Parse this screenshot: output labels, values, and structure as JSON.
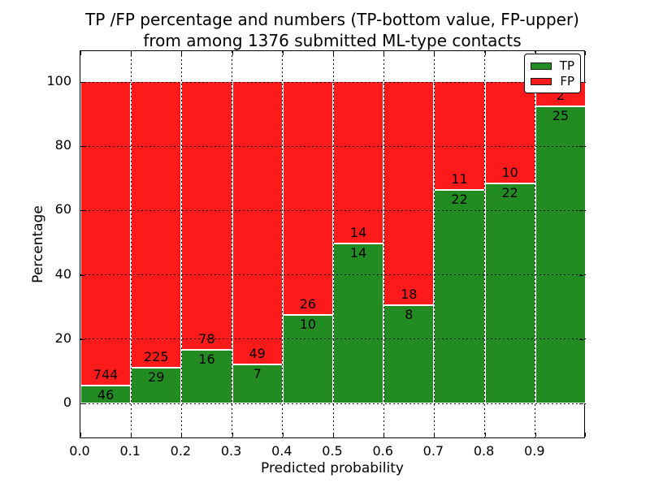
{
  "figure": {
    "title": "TP /FP percentage and numbers (TP-bottom value, FP-upper)",
    "subtitle": "from among 1376 submitted ML-type contacts"
  },
  "chart_data": {
    "type": "bar",
    "variant": "stacked-percentage-histogram",
    "title": "TP /FP percentage and numbers (TP-bottom value, FP-upper)",
    "subtitle": "from among 1376 submitted ML-type contacts",
    "xlabel": "Predicted probability",
    "ylabel": "Percentage",
    "total_contacts": 1376,
    "xlim": [
      0.0,
      1.0
    ],
    "ylim": [
      -11,
      110
    ],
    "grid": "dotted-black-both-axes",
    "legend_position": "upper-right",
    "bin_width": 0.1,
    "bin_starts": [
      0.0,
      0.1,
      0.2,
      0.3,
      0.4,
      0.5,
      0.6,
      0.7,
      0.8,
      0.9
    ],
    "x_ticks": [
      0.0,
      0.1,
      0.2,
      0.3,
      0.4,
      0.5,
      0.6,
      0.7,
      0.8,
      0.9
    ],
    "x_tick_labels": [
      "0.0",
      "0.1",
      "0.2",
      "0.3",
      "0.4",
      "0.5",
      "0.6",
      "0.7",
      "0.8",
      "0.9"
    ],
    "y_ticks": [
      0,
      20,
      40,
      60,
      80,
      100
    ],
    "y_tick_labels": [
      "0",
      "20",
      "40",
      "60",
      "80",
      "100"
    ],
    "series": [
      {
        "name": "TP",
        "color": "#228b22",
        "position": "bottom",
        "counts": [
          46,
          29,
          16,
          7,
          10,
          14,
          8,
          22,
          22,
          25
        ]
      },
      {
        "name": "FP",
        "color": "#fc1a1a",
        "position": "top",
        "counts": [
          744,
          225,
          78,
          49,
          26,
          14,
          18,
          11,
          10,
          2
        ]
      }
    ],
    "tp_percent": [
      5.82,
      11.42,
      17.02,
      12.5,
      27.78,
      50.0,
      30.77,
      66.67,
      68.75,
      92.59
    ]
  },
  "legend": {
    "items": [
      {
        "label": "TP",
        "color": "#228b22"
      },
      {
        "label": "FP",
        "color": "#fc1a1a"
      }
    ]
  }
}
